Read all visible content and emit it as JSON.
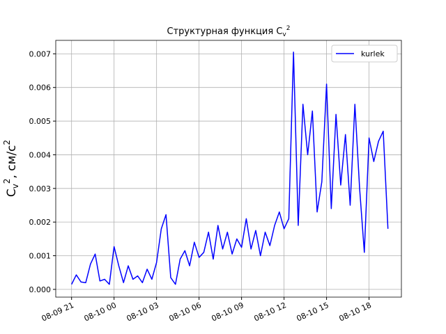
{
  "chart_data": {
    "type": "line",
    "title_parts": [
      "Структурная функция C",
      "v",
      "2"
    ],
    "ylabel_parts": [
      "C",
      "v",
      "2",
      ", см/с",
      "2"
    ],
    "x": [
      "08-09 21:00",
      "08-09 21:20",
      "08-09 21:40",
      "08-09 22:00",
      "08-09 22:20",
      "08-09 22:40",
      "08-09 23:00",
      "08-09 23:20",
      "08-09 23:40",
      "08-10 00:00",
      "08-10 00:20",
      "08-10 00:40",
      "08-10 01:00",
      "08-10 01:20",
      "08-10 01:40",
      "08-10 02:00",
      "08-10 02:20",
      "08-10 02:40",
      "08-10 03:00",
      "08-10 03:20",
      "08-10 03:40",
      "08-10 04:00",
      "08-10 04:20",
      "08-10 04:40",
      "08-10 05:00",
      "08-10 05:20",
      "08-10 05:40",
      "08-10 06:00",
      "08-10 06:20",
      "08-10 06:40",
      "08-10 07:00",
      "08-10 07:20",
      "08-10 07:40",
      "08-10 08:00",
      "08-10 08:20",
      "08-10 08:40",
      "08-10 09:00",
      "08-10 09:20",
      "08-10 09:40",
      "08-10 10:00",
      "08-10 10:20",
      "08-10 10:40",
      "08-10 11:00",
      "08-10 11:20",
      "08-10 11:40",
      "08-10 12:00",
      "08-10 12:20",
      "08-10 12:40",
      "08-10 13:00",
      "08-10 13:20",
      "08-10 13:40",
      "08-10 14:00",
      "08-10 14:20",
      "08-10 14:40",
      "08-10 15:00",
      "08-10 15:20",
      "08-10 15:40",
      "08-10 16:00",
      "08-10 16:20",
      "08-10 16:40",
      "08-10 17:00",
      "08-10 17:20",
      "08-10 17:40",
      "08-10 18:00",
      "08-10 18:20",
      "08-10 18:40",
      "08-10 19:00",
      "08-10 19:20"
    ],
    "series": [
      {
        "name": "kurlek",
        "color": "#0000ff",
        "values": [
          0.00015,
          0.00043,
          0.00022,
          0.0002,
          0.00075,
          0.00105,
          0.00025,
          0.0003,
          0.00015,
          0.00127,
          0.0007,
          0.0002,
          0.0007,
          0.0003,
          0.0004,
          0.0002,
          0.0006,
          0.0003,
          0.0008,
          0.0018,
          0.00222,
          0.00035,
          0.00015,
          0.0009,
          0.00115,
          0.0007,
          0.0014,
          0.00095,
          0.0011,
          0.0017,
          0.0009,
          0.0019,
          0.0012,
          0.0017,
          0.00105,
          0.0015,
          0.00125,
          0.0021,
          0.0012,
          0.00175,
          0.001,
          0.0017,
          0.0013,
          0.0019,
          0.0023,
          0.0018,
          0.0021,
          0.00705,
          0.0019,
          0.0055,
          0.004,
          0.0053,
          0.0023,
          0.0032,
          0.0061,
          0.0024,
          0.0052,
          0.0031,
          0.0046,
          0.0025,
          0.0055,
          0.003,
          0.0011,
          0.0045,
          0.0038,
          0.0044,
          0.0047,
          0.0018
        ]
      }
    ],
    "xlim": [
      "08-09 19:53",
      "08-10 20:17"
    ],
    "ylim": [
      -0.00023,
      0.0074
    ],
    "xticks": [
      {
        "value": "08-09 21:00",
        "label": "08-09 21"
      },
      {
        "value": "08-10 00:00",
        "label": "08-10 00"
      },
      {
        "value": "08-10 03:00",
        "label": "08-10 03"
      },
      {
        "value": "08-10 06:00",
        "label": "08-10 06"
      },
      {
        "value": "08-10 09:00",
        "label": "08-10 09"
      },
      {
        "value": "08-10 12:00",
        "label": "08-10 12"
      },
      {
        "value": "08-10 15:00",
        "label": "08-10 15"
      },
      {
        "value": "08-10 18:00",
        "label": "08-10 18"
      }
    ],
    "yticks": [
      {
        "value": 0,
        "label": "0.000"
      },
      {
        "value": 0.001,
        "label": "0.001"
      },
      {
        "value": 0.002,
        "label": "0.002"
      },
      {
        "value": 0.003,
        "label": "0.003"
      },
      {
        "value": 0.004,
        "label": "0.004"
      },
      {
        "value": 0.005,
        "label": "0.005"
      },
      {
        "value": 0.006,
        "label": "0.006"
      },
      {
        "value": 0.007,
        "label": "0.007"
      }
    ],
    "grid": true,
    "legend": "upper right"
  }
}
